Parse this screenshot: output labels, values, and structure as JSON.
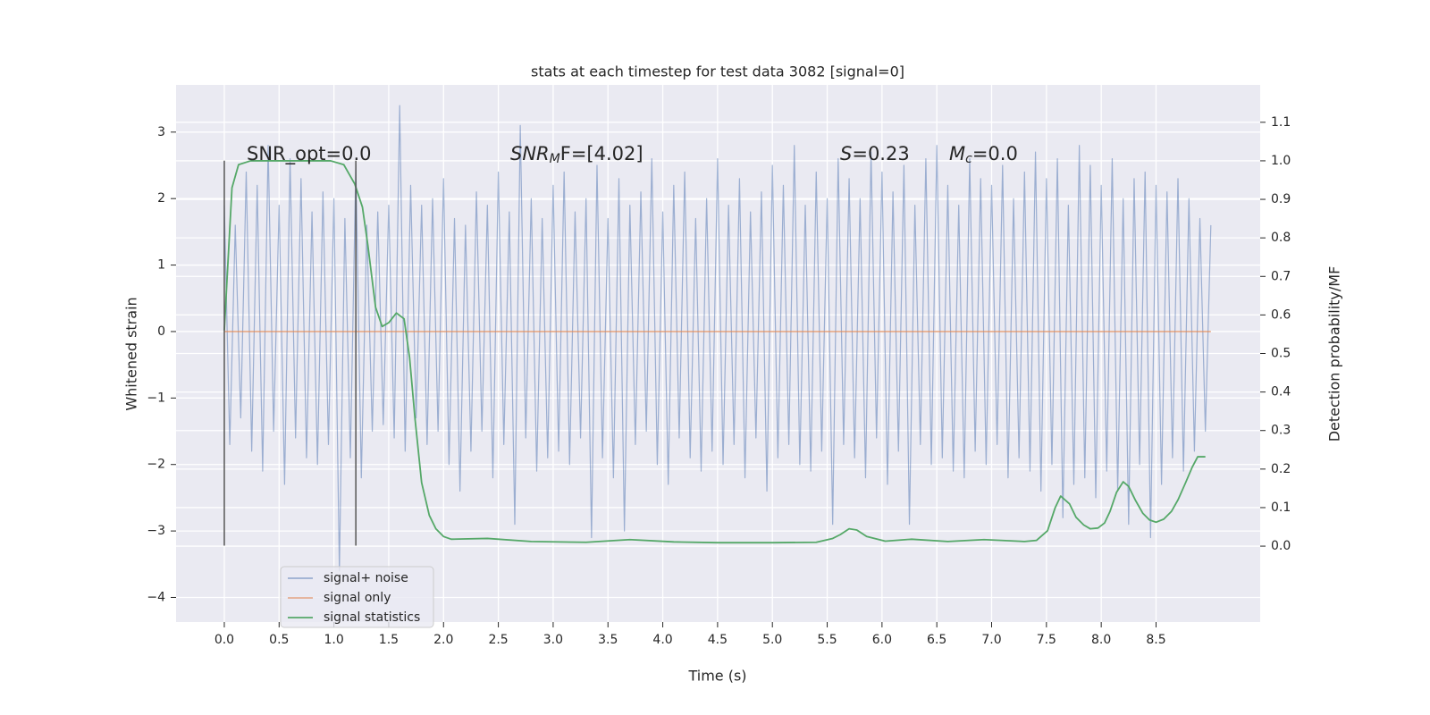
{
  "chart_data": {
    "type": "line",
    "title": "stats at each timestep for test data 3082 [signal=0]",
    "xlabel": "Time (s)",
    "ylabel": "Whitened strain",
    "y2label": "Detection probability/MF",
    "xlim": [
      -0.44,
      9.45
    ],
    "ylim": [
      -4.37,
      3.71
    ],
    "y2lim": [
      -0.197,
      1.197
    ],
    "xticks": [
      {
        "value": 0,
        "label": "0.0"
      },
      0.5,
      {
        "value": 1,
        "label": "1.0"
      },
      1.5,
      {
        "value": 2,
        "label": "2.0"
      },
      2.5,
      {
        "value": 3,
        "label": "3.0"
      },
      3.5,
      {
        "value": 4,
        "label": "4.0"
      },
      4.5,
      {
        "value": 5,
        "label": "5.0"
      },
      5.5,
      {
        "value": 6,
        "label": "6.0"
      },
      6.5,
      {
        "value": 7,
        "label": "7.0"
      },
      7.5,
      {
        "value": 8,
        "label": "8.0"
      },
      8.5
    ],
    "yticks": [
      {
        "value": -4,
        "label": "−4"
      },
      {
        "value": -3,
        "label": "−3"
      },
      {
        "value": -2,
        "label": "−2"
      },
      {
        "value": -1,
        "label": "−1"
      },
      0,
      1,
      2,
      3
    ],
    "y2ticks": [
      {
        "value": 0,
        "label": "0.0"
      },
      0.1,
      0.2,
      0.3,
      0.4,
      0.5,
      0.6,
      0.7,
      0.8,
      0.9,
      {
        "value": 1,
        "label": "1.0"
      },
      1.1
    ],
    "grid": true,
    "legend": "lower left",
    "series": [
      {
        "name": "signal+ noise",
        "color": "#4c72b0",
        "x": [
          0,
          0.05,
          0.1,
          0.15,
          0.2,
          0.25,
          0.3,
          0.35,
          0.4,
          0.45,
          0.5,
          0.55,
          0.6,
          0.65,
          0.7,
          0.75,
          0.8,
          0.85,
          0.9,
          0.95,
          1,
          1.05,
          1.1,
          1.15,
          1.2,
          1.25,
          1.3,
          1.35,
          1.4,
          1.45,
          1.5,
          1.55,
          1.6,
          1.65,
          1.7,
          1.75,
          1.8,
          1.85,
          1.9,
          1.95,
          2,
          2.05,
          2.1,
          2.15,
          2.2,
          2.25,
          2.3,
          2.35,
          2.4,
          2.45,
          2.5,
          2.55,
          2.6,
          2.65,
          2.7,
          2.75,
          2.8,
          2.85,
          2.9,
          2.95,
          3,
          3.05,
          3.1,
          3.15,
          3.2,
          3.25,
          3.3,
          3.35,
          3.4,
          3.45,
          3.5,
          3.55,
          3.6,
          3.65,
          3.7,
          3.75,
          3.8,
          3.85,
          3.9,
          3.95,
          4,
          4.05,
          4.1,
          4.15,
          4.2,
          4.25,
          4.3,
          4.35,
          4.4,
          4.45,
          4.5,
          4.55,
          4.6,
          4.65,
          4.7,
          4.75,
          4.8,
          4.85,
          4.9,
          4.95,
          5,
          5.05,
          5.1,
          5.15,
          5.2,
          5.25,
          5.3,
          5.35,
          5.4,
          5.45,
          5.5,
          5.55,
          5.6,
          5.65,
          5.7,
          5.75,
          5.8,
          5.85,
          5.9,
          5.95,
          6,
          6.05,
          6.1,
          6.15,
          6.2,
          6.25,
          6.3,
          6.35,
          6.4,
          6.45,
          6.5,
          6.55,
          6.6,
          6.65,
          6.7,
          6.75,
          6.8,
          6.85,
          6.9,
          6.95,
          7,
          7.05,
          7.1,
          7.15,
          7.2,
          7.25,
          7.3,
          7.35,
          7.4,
          7.45,
          7.5,
          7.55,
          7.6,
          7.65,
          7.7,
          7.75,
          7.8,
          7.85,
          7.9,
          7.95,
          8,
          8.05,
          8.1,
          8.15,
          8.2,
          8.25,
          8.3,
          8.35,
          8.4,
          8.45,
          8.5,
          8.55,
          8.6,
          8.65,
          8.7,
          8.75,
          8.8,
          8.85,
          8.9,
          8.95,
          9
        ],
        "values": [
          1.9,
          -1.7,
          1.6,
          -1.3,
          2.4,
          -1.8,
          2.2,
          -2.1,
          2.8,
          -1.5,
          1.9,
          -2.3,
          2.6,
          -1.6,
          2.3,
          -1.9,
          1.8,
          -2.0,
          2.1,
          -1.7,
          2.0,
          -3.6,
          1.7,
          -1.9,
          2.5,
          -2.2,
          1.6,
          -1.5,
          1.8,
          -1.4,
          1.9,
          -1.6,
          3.4,
          -1.8,
          2.2,
          -1.3,
          1.9,
          -1.7,
          2.0,
          -1.5,
          2.3,
          -2.0,
          1.7,
          -2.4,
          1.6,
          -1.8,
          2.1,
          -1.5,
          1.9,
          -2.2,
          2.4,
          -1.7,
          1.8,
          -2.9,
          3.1,
          -1.6,
          2.0,
          -2.1,
          1.7,
          -1.9,
          2.2,
          -1.8,
          2.4,
          -2.0,
          1.8,
          -1.6,
          2.0,
          -3.1,
          2.5,
          -1.9,
          1.7,
          -2.2,
          2.3,
          -3.0,
          1.9,
          -1.7,
          2.1,
          -1.5,
          2.6,
          -2.0,
          1.8,
          -2.3,
          2.2,
          -1.6,
          2.4,
          -1.9,
          1.7,
          -2.1,
          2.0,
          -1.8,
          2.6,
          -2.0,
          1.9,
          -1.7,
          2.3,
          -2.2,
          1.8,
          -1.6,
          2.1,
          -2.4,
          2.5,
          -1.9,
          2.2,
          -1.7,
          2.8,
          -2.0,
          1.9,
          -2.1,
          2.4,
          -1.8,
          2.0,
          -2.9,
          2.6,
          -1.7,
          2.3,
          -1.9,
          2.0,
          -2.2,
          2.7,
          -1.6,
          2.4,
          -2.3,
          2.1,
          -1.8,
          2.5,
          -2.9,
          1.9,
          -1.7,
          2.6,
          -2.0,
          2.8,
          -1.9,
          2.2,
          -2.1,
          1.9,
          -2.2,
          2.6,
          -1.8,
          2.3,
          -2.0,
          2.2,
          -1.7,
          2.5,
          -2.2,
          2.0,
          -1.9,
          2.4,
          -2.1,
          2.7,
          -2.4,
          2.3,
          -2.0,
          2.6,
          -2.8,
          1.9,
          -2.3,
          2.8,
          -2.2,
          2.5,
          -2.5,
          2.2,
          -2.1,
          2.6,
          -2.4,
          2.0,
          -2.9,
          2.3,
          -2.0,
          2.4,
          -3.1,
          2.2,
          -2.3,
          2.1,
          -1.9,
          2.3,
          -2.1,
          2.0,
          -1.8,
          1.7,
          -1.5,
          1.6
        ]
      },
      {
        "name": "signal only",
        "color": "#dd8452",
        "x": [
          0,
          9
        ],
        "values": [
          0,
          0
        ]
      },
      {
        "name": "signal statistics",
        "color": "#55a868",
        "axis": "y2",
        "x": [
          0,
          0.07,
          0.13,
          0.24,
          0.5,
          0.97,
          1.09,
          1.19,
          1.26,
          1.31,
          1.38,
          1.44,
          1.5,
          1.57,
          1.64,
          1.69,
          1.74,
          1.8,
          1.87,
          1.93,
          2.0,
          2.07,
          2.4,
          2.8,
          3.3,
          3.7,
          4.1,
          4.5,
          5.0,
          5.4,
          5.55,
          5.62,
          5.7,
          5.77,
          5.86,
          6.03,
          6.27,
          6.6,
          6.93,
          7.3,
          7.41,
          7.51,
          7.58,
          7.63,
          7.71,
          7.77,
          7.84,
          7.9,
          7.97,
          8.03,
          8.08,
          8.14,
          8.2,
          8.25,
          8.31,
          8.38,
          8.44,
          8.5,
          8.57,
          8.64,
          8.7,
          8.77,
          8.83,
          8.88,
          8.95
        ],
        "values": [
          0.56,
          0.93,
          0.99,
          1.0,
          1.0,
          1.0,
          0.99,
          0.94,
          0.88,
          0.78,
          0.62,
          0.57,
          0.58,
          0.605,
          0.59,
          0.49,
          0.33,
          0.165,
          0.08,
          0.045,
          0.025,
          0.018,
          0.02,
          0.012,
          0.01,
          0.017,
          0.011,
          0.009,
          0.009,
          0.01,
          0.02,
          0.03,
          0.045,
          0.042,
          0.025,
          0.013,
          0.018,
          0.012,
          0.017,
          0.012,
          0.015,
          0.04,
          0.1,
          0.13,
          0.11,
          0.075,
          0.055,
          0.045,
          0.047,
          0.06,
          0.09,
          0.14,
          0.167,
          0.155,
          0.12,
          0.085,
          0.068,
          0.062,
          0.07,
          0.09,
          0.12,
          0.165,
          0.205,
          0.232,
          0.232
        ]
      }
    ],
    "vlines": [
      {
        "x": 0,
        "ymin": -3.22,
        "ymax": 2.57
      },
      {
        "x": 1.2,
        "ymin": -3.22,
        "ymax": 2.57
      }
    ],
    "annotations": [
      {
        "parts": [
          {
            "text": "SNR_opt=0.0"
          }
        ]
      },
      {
        "parts": [
          {
            "text": "SNR",
            "style": "italic"
          },
          {
            "text": "M",
            "style": "italic-sub"
          },
          {
            "text": "F=[4.02]"
          }
        ]
      },
      {
        "parts": [
          {
            "text": "S",
            "style": "italic"
          },
          {
            "text": "=0.23"
          }
        ]
      },
      {
        "parts": [
          {
            "text": "M",
            "style": "italic"
          },
          {
            "text": "c",
            "style": "italic-sub"
          },
          {
            "text": "=0.0"
          }
        ]
      }
    ]
  }
}
